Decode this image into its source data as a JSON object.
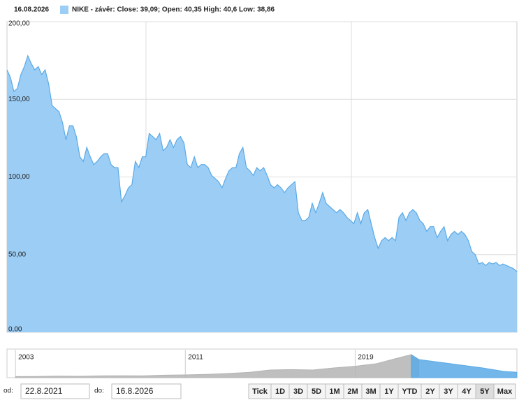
{
  "header": {
    "date": "16.08.2026"
  },
  "chart_data": [
    {
      "type": "area",
      "series": [
        {
          "name": "NIKE - závěr: Close: 39,09; Open: 40,35 High: 40,6 Low: 38,86",
          "color": "#9ccdf5",
          "line_color": "#5aaae6",
          "values": [
            169,
            164,
            155,
            157,
            166,
            171,
            178,
            173,
            169,
            171,
            166,
            169,
            160,
            146,
            144,
            142,
            135,
            124,
            133,
            133,
            126,
            113,
            110,
            119,
            113,
            108,
            110,
            113,
            115,
            115,
            108,
            106,
            106,
            84,
            88,
            93,
            95,
            110,
            106,
            113,
            113,
            128,
            126,
            124,
            128,
            117,
            119,
            124,
            119,
            124,
            126,
            122,
            108,
            106,
            113,
            106,
            108,
            108,
            106,
            101,
            99,
            97,
            93,
            99,
            104,
            106,
            106,
            115,
            119,
            106,
            104,
            101,
            106,
            104,
            106,
            101,
            95,
            93,
            95,
            93,
            90,
            93,
            95,
            97,
            77,
            72,
            72,
            74,
            83,
            77,
            83,
            90,
            83,
            81,
            79,
            77,
            79,
            77,
            74,
            72,
            70,
            77,
            70,
            77,
            79,
            70,
            61,
            54,
            59,
            61,
            59,
            61,
            59,
            74,
            77,
            72,
            77,
            79,
            77,
            72,
            70,
            65,
            68,
            68,
            61,
            65,
            68,
            59,
            63,
            65,
            63,
            65,
            63,
            59,
            52,
            50,
            44,
            45,
            43,
            45,
            44,
            45,
            43,
            44,
            43,
            42,
            41,
            39.09
          ]
        }
      ],
      "ylim": [
        0,
        200
      ],
      "yticks": [
        {
          "value": 0,
          "label": "0,00"
        },
        {
          "value": 50,
          "label": "50,00"
        },
        {
          "value": 100,
          "label": "100,00"
        },
        {
          "value": 150,
          "label": "150,00"
        },
        {
          "value": 200,
          "label": "200,00"
        }
      ],
      "grid": true
    },
    {
      "type": "navigator",
      "x": [
        2003,
        2004,
        2005,
        2006,
        2007,
        2008,
        2009,
        2010,
        2011,
        2012,
        2013,
        2014,
        2015,
        2016,
        2017,
        2018,
        2019,
        2020,
        2021,
        2021.64,
        2022,
        2023,
        2024,
        2025,
        2026,
        2026.62
      ],
      "values": [
        8,
        9,
        11,
        10,
        13,
        14,
        13,
        18,
        20,
        24,
        30,
        38,
        55,
        58,
        55,
        70,
        82,
        100,
        140,
        165,
        130,
        110,
        90,
        70,
        45,
        39
      ],
      "color": "#b4b4b4",
      "selected_color": "#5aaae6",
      "xlim": [
        2002.6,
        2026.62
      ],
      "xticks": [
        2003,
        2011,
        2019
      ],
      "ylim": [
        0,
        200
      ]
    }
  ],
  "controls": {
    "from_label": "od:",
    "from": "22.8.2021",
    "to_label": "do:",
    "to": "16.8.2026",
    "buttons": [
      "Tick",
      "1D",
      "3D",
      "5D",
      "1M",
      "2M",
      "3M",
      "1Y",
      "YTD",
      "2Y",
      "3Y",
      "4Y",
      "5Y",
      "Max"
    ],
    "selected": "5Y"
  }
}
